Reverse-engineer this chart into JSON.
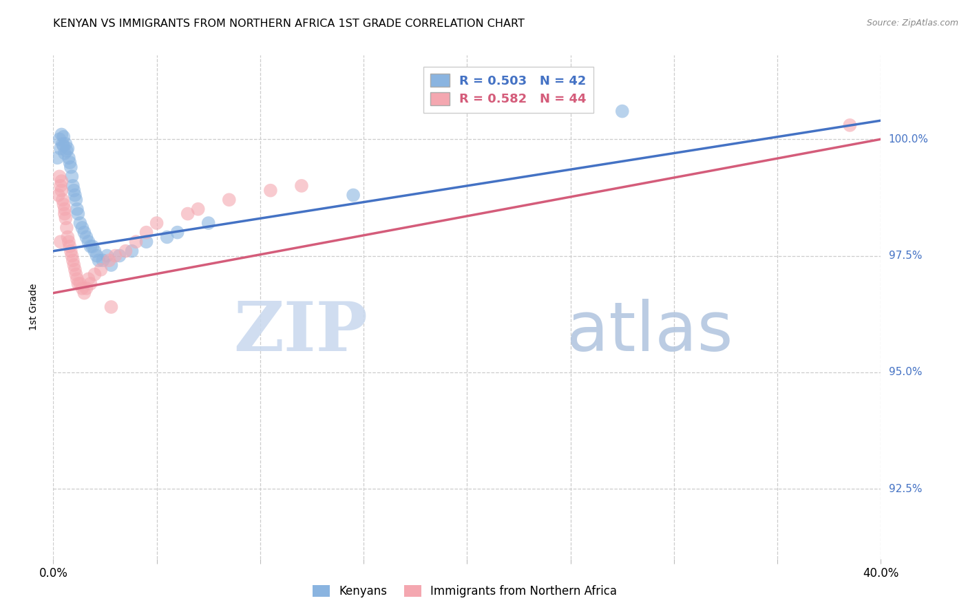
{
  "title": "KENYAN VS IMMIGRANTS FROM NORTHERN AFRICA 1ST GRADE CORRELATION CHART",
  "source": "Source: ZipAtlas.com",
  "ylabel": "1st Grade",
  "xlim": [
    0.0,
    40.0
  ],
  "ylim": [
    91.0,
    101.8
  ],
  "yticks": [
    92.5,
    95.0,
    97.5,
    100.0
  ],
  "ytick_labels": [
    "92.5%",
    "95.0%",
    "97.5%",
    "100.0%"
  ],
  "xticks": [
    0.0,
    5.0,
    10.0,
    15.0,
    20.0,
    25.0,
    30.0,
    35.0,
    40.0
  ],
  "blue_R": 0.503,
  "blue_N": 42,
  "pink_R": 0.582,
  "pink_N": 44,
  "blue_color": "#8ab4e0",
  "pink_color": "#f4a7b0",
  "trend_blue": "#4472c4",
  "trend_pink": "#d45c7a",
  "legend_label_blue": "Kenyans",
  "legend_label_pink": "Immigrants from Northern Africa",
  "watermark_zip": "ZIP",
  "watermark_atlas": "atlas",
  "blue_x": [
    0.2,
    0.3,
    0.35,
    0.4,
    0.45,
    0.5,
    0.5,
    0.55,
    0.6,
    0.65,
    0.7,
    0.75,
    0.8,
    0.85,
    0.9,
    0.95,
    1.0,
    1.05,
    1.1,
    1.15,
    1.2,
    1.3,
    1.4,
    1.5,
    1.6,
    1.7,
    1.8,
    1.9,
    2.0,
    2.1,
    2.2,
    2.4,
    2.6,
    2.8,
    3.2,
    3.8,
    4.5,
    5.5,
    6.0,
    7.5,
    14.5,
    27.5
  ],
  "blue_y": [
    99.6,
    100.0,
    99.8,
    100.1,
    99.9,
    99.85,
    100.05,
    99.7,
    99.9,
    99.75,
    99.8,
    99.6,
    99.5,
    99.4,
    99.2,
    99.0,
    98.9,
    98.8,
    98.7,
    98.5,
    98.4,
    98.2,
    98.1,
    98.0,
    97.9,
    97.8,
    97.7,
    97.7,
    97.6,
    97.5,
    97.4,
    97.4,
    97.5,
    97.3,
    97.5,
    97.6,
    97.8,
    97.9,
    98.0,
    98.2,
    98.8,
    100.6
  ],
  "pink_x": [
    0.25,
    0.3,
    0.35,
    0.4,
    0.45,
    0.5,
    0.55,
    0.6,
    0.65,
    0.7,
    0.75,
    0.8,
    0.85,
    0.9,
    0.95,
    1.0,
    1.05,
    1.1,
    1.15,
    1.2,
    1.3,
    1.4,
    1.5,
    1.6,
    1.7,
    1.8,
    2.0,
    2.3,
    2.7,
    3.0,
    3.5,
    4.0,
    4.5,
    5.0,
    6.5,
    7.0,
    8.5,
    10.5,
    12.0,
    0.4,
    0.55,
    2.8,
    38.5,
    0.35
  ],
  "pink_y": [
    98.8,
    99.2,
    99.0,
    98.9,
    98.7,
    98.6,
    98.4,
    98.3,
    98.1,
    97.9,
    97.8,
    97.7,
    97.6,
    97.5,
    97.4,
    97.3,
    97.2,
    97.1,
    97.0,
    96.9,
    96.9,
    96.8,
    96.7,
    96.8,
    97.0,
    96.9,
    97.1,
    97.2,
    97.4,
    97.5,
    97.6,
    97.8,
    98.0,
    98.2,
    98.4,
    98.5,
    98.7,
    98.9,
    99.0,
    99.1,
    98.5,
    96.4,
    100.3,
    97.8
  ],
  "blue_trend_x0": 0.0,
  "blue_trend_y0": 97.6,
  "blue_trend_x1": 40.0,
  "blue_trend_y1": 100.4,
  "pink_trend_x0": 0.0,
  "pink_trend_y0": 96.7,
  "pink_trend_x1": 40.0,
  "pink_trend_y1": 100.0
}
